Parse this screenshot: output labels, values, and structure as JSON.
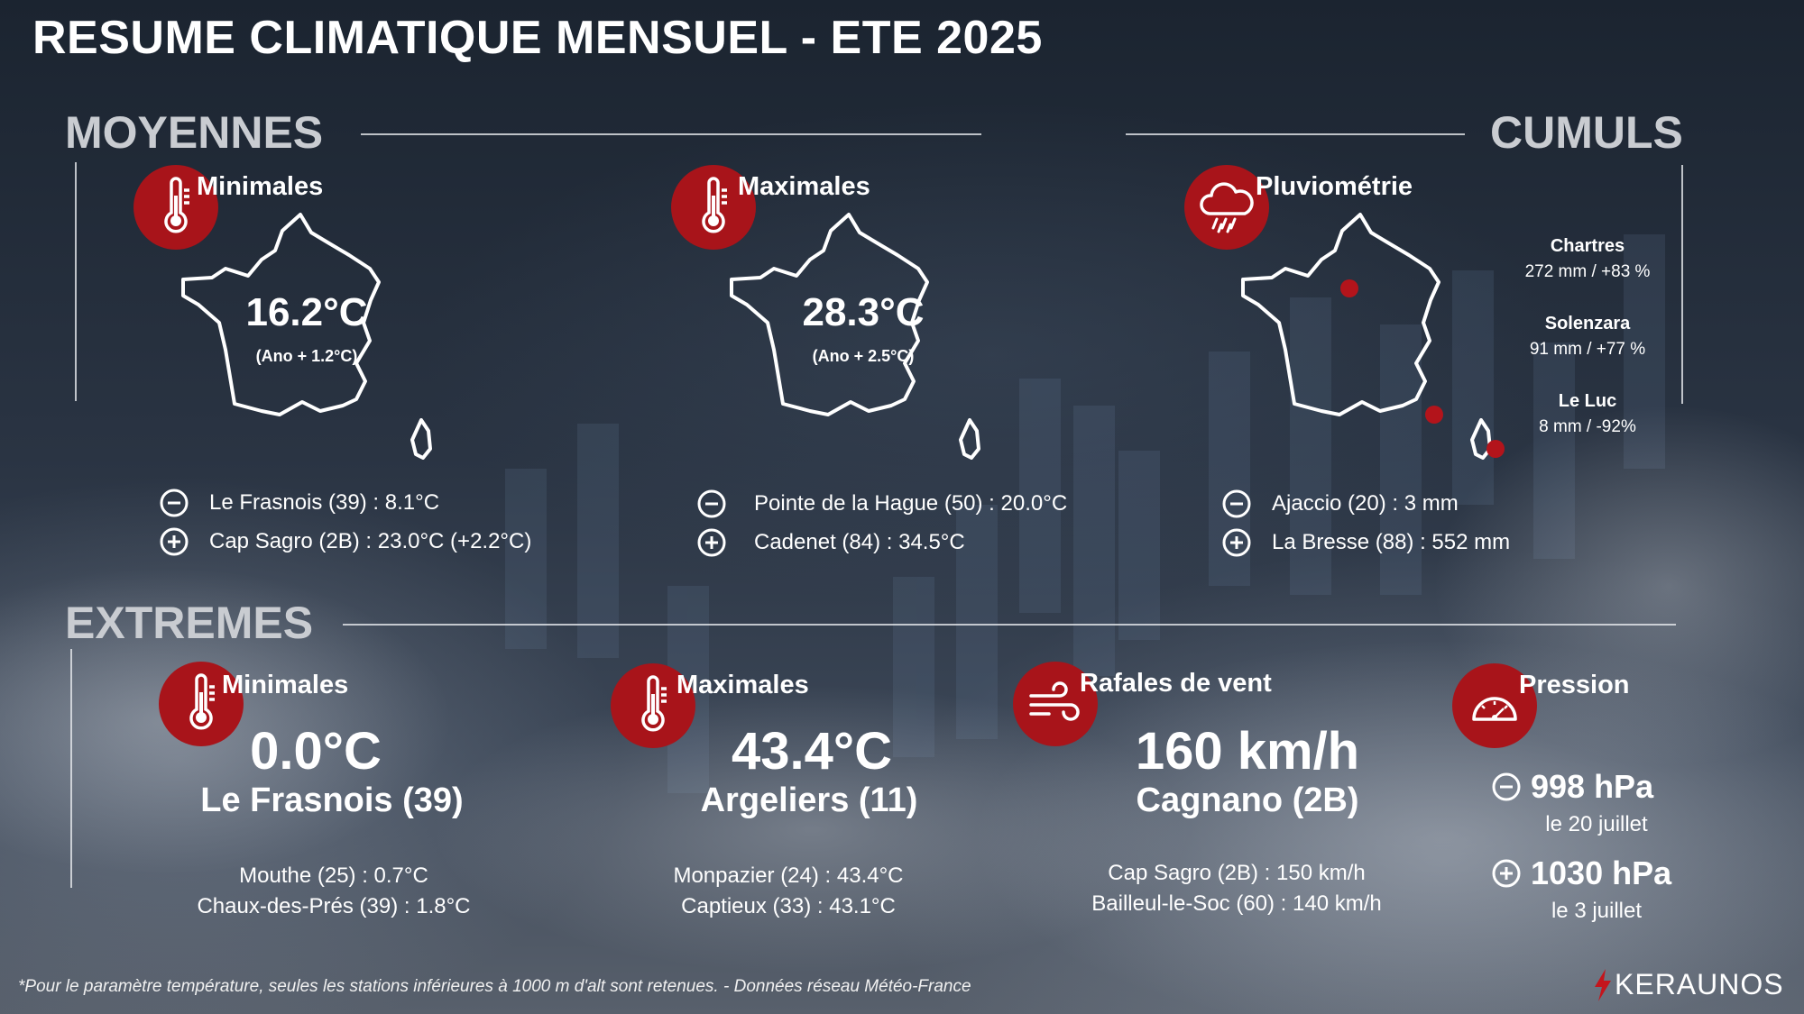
{
  "title": "RESUME CLIMATIQUE MENSUEL - ETE 2025",
  "colors": {
    "accent": "#a8141a",
    "marker": "#b3141b",
    "section": "#c9ccd1"
  },
  "sections": {
    "moyennes": "MOYENNES",
    "cumuls": "CUMULS",
    "extremes": "EXTREMES"
  },
  "moyennes": {
    "minimales": {
      "title": "Minimales",
      "icon": "thermometer-icon",
      "value": "16.2°C",
      "anomaly": "(Ano + 1.2°C)",
      "min": "Le Frasnois (39) : 8.1°C",
      "max": "Cap Sagro (2B) : 23.0°C (+2.2°C)"
    },
    "maximales": {
      "title": "Maximales",
      "icon": "thermometer-icon",
      "value": "28.3°C",
      "anomaly": "(Ano + 2.5°C)",
      "min": "Pointe de la Hague (50) : 20.0°C",
      "max": "Cadenet (84) : 34.5°C"
    }
  },
  "cumuls": {
    "pluviometrie": {
      "title": "Pluviométrie",
      "icon": "rain-cloud-icon",
      "stations": [
        {
          "city": "Chartres",
          "value": "272 mm / +83 %"
        },
        {
          "city": "Solenzara",
          "value": "91 mm / +77 %"
        },
        {
          "city": "Le Luc",
          "value": "8 mm / -92%"
        }
      ],
      "min": "Ajaccio (20) : 3 mm",
      "max": "La Bresse (88) : 552 mm"
    }
  },
  "extremes": {
    "minimales": {
      "title": "Minimales",
      "icon": "thermometer-icon",
      "value": "0.0°C",
      "place": "Le Frasnois (39)",
      "others": [
        "Mouthe (25) : 0.7°C",
        "Chaux-des-Prés (39) : 1.8°C"
      ]
    },
    "maximales": {
      "title": "Maximales",
      "icon": "thermometer-icon",
      "value": "43.4°C",
      "place": "Argeliers (11)",
      "others": [
        "Monpazier (24) : 43.4°C",
        "Captieux (33) : 43.1°C"
      ]
    },
    "rafales": {
      "title": "Rafales de vent",
      "icon": "wind-icon",
      "value": "160 km/h",
      "place": "Cagnano (2B)",
      "others": [
        "Cap Sagro (2B) : 150 km/h",
        "Bailleul-le-Soc (60) : 140 km/h"
      ]
    },
    "pression": {
      "title": "Pression",
      "icon": "barometer-icon",
      "min_value": "998 hPa",
      "min_date": "le 20 juillet",
      "max_value": "1030 hPa",
      "max_date": "le 3 juillet"
    }
  },
  "footnote": "*Pour le paramètre température, seules les stations inférieures à 1000 m d'alt sont retenues. - Données réseau Météo-France",
  "logo": {
    "text": "KERAUNOS",
    "icon": "lightning-icon"
  }
}
